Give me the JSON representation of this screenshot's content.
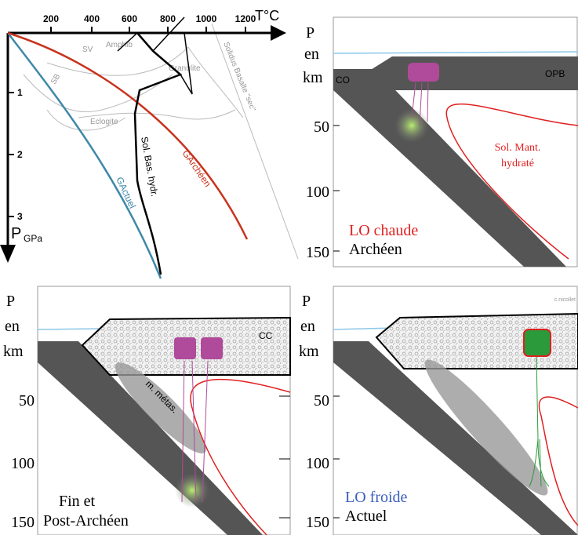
{
  "pt_diagram": {
    "temperature_ticks": [
      "200",
      "400",
      "600",
      "800",
      "1000",
      "1200"
    ],
    "temperature_label": "T°C",
    "pressure_ticks": [
      "1",
      "2",
      "3"
    ],
    "pressure_label": "P",
    "pressure_unit": "GPa",
    "fields": {
      "sv": "SV",
      "amphib": "Amphib",
      "granulite": "Granulite",
      "sb": "SB",
      "eclogite": "Eclogite"
    },
    "curves": {
      "solidus_dry": "Solidus Basalte \"sec\"",
      "solidus_hydrated": "Sol. Bas. hydr.",
      "geotherm_archean": "GArchéen",
      "geotherm_present": "GActuel"
    }
  },
  "panels": [
    {
      "axis": [
        "P",
        "en",
        "km"
      ],
      "depths": [
        "50",
        "100",
        "150"
      ],
      "labels": {
        "co": "CO",
        "opb": "OPB",
        "mantle_1": "Sol. Mant.",
        "mantle_2": "hydraté"
      },
      "caption_1": "LO chaude",
      "caption_2": "Archéen"
    },
    {
      "axis": [
        "P",
        "en",
        "km"
      ],
      "depths": [
        "50",
        "100",
        "150"
      ],
      "labels": {
        "cc": "CC",
        "meta": "m. métas."
      },
      "caption_1": "Fin et",
      "caption_2": "Post-Archéen"
    },
    {
      "axis": [
        "P",
        "en",
        "km"
      ],
      "depths": [
        "50",
        "100",
        "150"
      ],
      "labels": {
        "credit": "c.nicollet"
      },
      "caption_1": "LO froide",
      "caption_2": "Actuel"
    }
  ]
}
